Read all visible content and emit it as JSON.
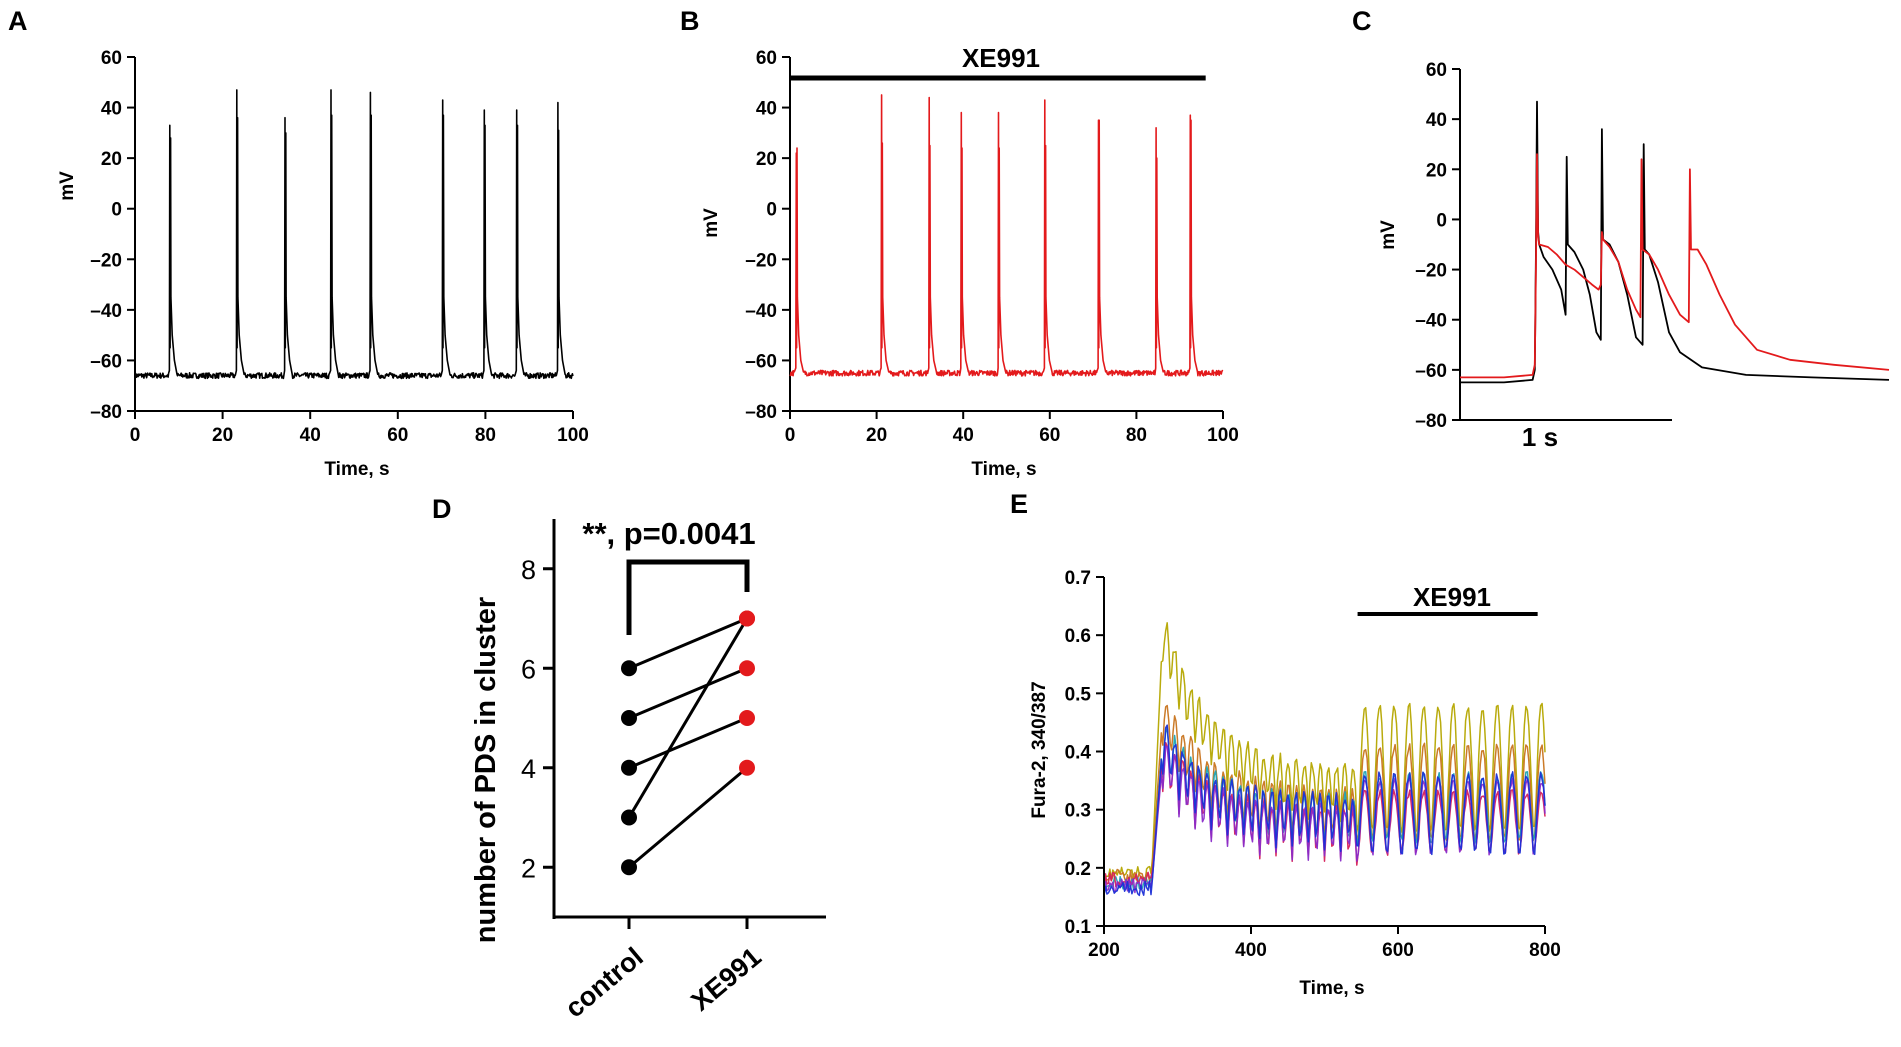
{
  "colors": {
    "control": "#000000",
    "xe991": "#e31a1c",
    "fura_traces": [
      "#b5a700",
      "#c8741e",
      "#1ea3b4",
      "#d6205a",
      "#8a2bc9",
      "#1c2fd6"
    ]
  },
  "chart_data": [
    {
      "id": "A",
      "panel_label": "A",
      "type": "line",
      "title": "",
      "xlabel": "Time, s",
      "ylabel": "mV",
      "xlim": [
        0,
        100
      ],
      "ylim": [
        -80,
        60
      ],
      "x_ticks": [
        0,
        20,
        40,
        60,
        80,
        100
      ],
      "y_ticks": [
        -80,
        -60,
        -40,
        -20,
        0,
        20,
        40,
        60
      ],
      "baseline_mV": -66,
      "series": [
        {
          "name": "control",
          "color": "#000000",
          "bursts": [
            {
              "t": 8,
              "peaks": [
                33,
                28
              ]
            },
            {
              "t": 23.3,
              "peaks": [
                47,
                36
              ]
            },
            {
              "t": 34.3,
              "peaks": [
                36,
                30
              ]
            },
            {
              "t": 44.8,
              "peaks": [
                47,
                37
              ]
            },
            {
              "t": 53.8,
              "peaks": [
                46,
                37
              ]
            },
            {
              "t": 70.3,
              "peaks": [
                43,
                37
              ]
            },
            {
              "t": 79.8,
              "peaks": [
                39,
                33
              ]
            },
            {
              "t": 87.2,
              "peaks": [
                39,
                33
              ]
            },
            {
              "t": 96.6,
              "peaks": [
                42,
                31
              ]
            }
          ]
        }
      ]
    },
    {
      "id": "B",
      "panel_label": "B",
      "type": "line",
      "title": "",
      "annotation": "XE991",
      "annotation_range": [
        0,
        96
      ],
      "xlabel": "Time, s",
      "ylabel": "mV",
      "xlim": [
        0,
        100
      ],
      "ylim": [
        -80,
        60
      ],
      "x_ticks": [
        0,
        20,
        40,
        60,
        80,
        100
      ],
      "y_ticks": [
        -80,
        -60,
        -40,
        -20,
        0,
        20,
        40,
        60
      ],
      "baseline_mV": -65,
      "series": [
        {
          "name": "XE991",
          "color": "#e31a1c",
          "bursts": [
            {
              "t": 1.5,
              "peaks": [
                22,
                24
              ]
            },
            {
              "t": 21.2,
              "peaks": [
                45,
                26
              ]
            },
            {
              "t": 32.2,
              "peaks": [
                44,
                25
              ]
            },
            {
              "t": 39.6,
              "peaks": [
                38,
                24
              ]
            },
            {
              "t": 48.2,
              "peaks": [
                38,
                24
              ]
            },
            {
              "t": 58.9,
              "peaks": [
                43,
                25
              ]
            },
            {
              "t": 71.3,
              "peaks": [
                35,
                35
              ]
            },
            {
              "t": 84.6,
              "peaks": [
                32,
                20
              ]
            },
            {
              "t": 92.5,
              "peaks": [
                37,
                35
              ]
            }
          ]
        }
      ]
    },
    {
      "id": "C",
      "panel_label": "C",
      "type": "line",
      "title": "",
      "xlabel": "",
      "ylabel": "mV",
      "ylim": [
        -80,
        60
      ],
      "y_ticks": [
        -80,
        -60,
        -40,
        -20,
        0,
        20,
        40,
        60
      ],
      "scale_bar": "1 s",
      "series": [
        {
          "name": "control",
          "color": "#000000",
          "points": [
            [
              0,
              -65
            ],
            [
              0.2,
              -65
            ],
            [
              0.33,
              -64
            ],
            [
              0.34,
              -60
            ],
            [
              0.345,
              -15
            ],
            [
              0.35,
              47
            ],
            [
              0.355,
              -5
            ],
            [
              0.36,
              -10
            ],
            [
              0.38,
              -15
            ],
            [
              0.42,
              -20
            ],
            [
              0.46,
              -28
            ],
            [
              0.48,
              -38
            ],
            [
              0.485,
              25
            ],
            [
              0.49,
              -10
            ],
            [
              0.52,
              -13
            ],
            [
              0.56,
              -20
            ],
            [
              0.59,
              -30
            ],
            [
              0.62,
              -45
            ],
            [
              0.64,
              -48
            ],
            [
              0.645,
              36
            ],
            [
              0.65,
              -8
            ],
            [
              0.68,
              -10
            ],
            [
              0.72,
              -17
            ],
            [
              0.76,
              -30
            ],
            [
              0.8,
              -47
            ],
            [
              0.83,
              -50
            ],
            [
              0.835,
              30
            ],
            [
              0.84,
              -12
            ],
            [
              0.86,
              -14
            ],
            [
              0.9,
              -25
            ],
            [
              0.95,
              -45
            ],
            [
              1.0,
              -53
            ],
            [
              1.1,
              -59
            ],
            [
              1.3,
              -62
            ],
            [
              1.6,
              -63
            ],
            [
              1.95,
              -64
            ]
          ]
        },
        {
          "name": "XE991",
          "color": "#e31a1c",
          "points": [
            [
              0,
              -63
            ],
            [
              0.2,
              -63
            ],
            [
              0.33,
              -62
            ],
            [
              0.34,
              -58
            ],
            [
              0.345,
              -20
            ],
            [
              0.35,
              26
            ],
            [
              0.355,
              -7
            ],
            [
              0.36,
              -10
            ],
            [
              0.4,
              -11
            ],
            [
              0.44,
              -14
            ],
            [
              0.48,
              -18
            ],
            [
              0.52,
              -20
            ],
            [
              0.56,
              -23
            ],
            [
              0.6,
              -26
            ],
            [
              0.63,
              -28
            ],
            [
              0.64,
              -26
            ],
            [
              0.645,
              -5
            ],
            [
              0.65,
              -8
            ],
            [
              0.68,
              -11
            ],
            [
              0.72,
              -17
            ],
            [
              0.76,
              -28
            ],
            [
              0.8,
              -36
            ],
            [
              0.82,
              -39
            ],
            [
              0.825,
              24
            ],
            [
              0.83,
              -12
            ],
            [
              0.86,
              -14
            ],
            [
              0.9,
              -20
            ],
            [
              0.95,
              -30
            ],
            [
              1.0,
              -38
            ],
            [
              1.04,
              -41
            ],
            [
              1.045,
              20
            ],
            [
              1.05,
              -12
            ],
            [
              1.08,
              -12
            ],
            [
              1.12,
              -18
            ],
            [
              1.18,
              -30
            ],
            [
              1.25,
              -42
            ],
            [
              1.35,
              -52
            ],
            [
              1.5,
              -56
            ],
            [
              1.7,
              -58
            ],
            [
              1.95,
              -60
            ]
          ]
        }
      ]
    },
    {
      "id": "D",
      "panel_label": "D",
      "type": "scatter",
      "title": "",
      "significance": "**, p=0.0041",
      "xlabel": "",
      "ylabel": "number of PDS in cluster",
      "categories": [
        "control",
        "XE991"
      ],
      "ylim": [
        1,
        9
      ],
      "y_ticks": [
        2,
        4,
        6,
        8
      ],
      "pairs": [
        [
          6,
          7
        ],
        [
          5,
          6
        ],
        [
          4,
          5
        ],
        [
          3,
          7
        ],
        [
          2,
          4
        ]
      ]
    },
    {
      "id": "E",
      "panel_label": "E",
      "type": "line",
      "title": "",
      "annotation": "XE991",
      "annotation_range": [
        545,
        800
      ],
      "xlabel": "Time, s",
      "ylabel": "Fura-2, 340/387",
      "xlim": [
        200,
        800
      ],
      "ylim": [
        0.1,
        0.7
      ],
      "x_ticks": [
        200,
        400,
        600,
        800
      ],
      "y_ticks": [
        0.1,
        0.2,
        0.3,
        0.4,
        0.5,
        0.6,
        0.7
      ],
      "y_tick_labels": [
        "0.1",
        "0.2",
        "0.3",
        "0.4",
        "0.5",
        "0.6",
        "0.7"
      ],
      "series": [
        {
          "name": "trace 1",
          "color": "#b5a700",
          "pre": 0.19,
          "peak": 0.61,
          "plateau": 0.34,
          "low": 0.25,
          "high": 0.48
        },
        {
          "name": "trace 2",
          "color": "#c8741e",
          "pre": 0.185,
          "peak": 0.47,
          "plateau": 0.3,
          "low": 0.24,
          "high": 0.41
        },
        {
          "name": "trace 3",
          "color": "#1ea3b4",
          "pre": 0.175,
          "peak": 0.42,
          "plateau": 0.29,
          "low": 0.24,
          "high": 0.36
        },
        {
          "name": "trace 4",
          "color": "#d6205a",
          "pre": 0.18,
          "peak": 0.4,
          "plateau": 0.27,
          "low": 0.22,
          "high": 0.33
        },
        {
          "name": "trace 5",
          "color": "#8a2bc9",
          "pre": 0.17,
          "peak": 0.39,
          "plateau": 0.27,
          "low": 0.22,
          "high": 0.35
        },
        {
          "name": "trace 6",
          "color": "#1c2fd6",
          "pre": 0.165,
          "peak": 0.42,
          "plateau": 0.29,
          "low": 0.22,
          "high": 0.36
        }
      ]
    }
  ]
}
